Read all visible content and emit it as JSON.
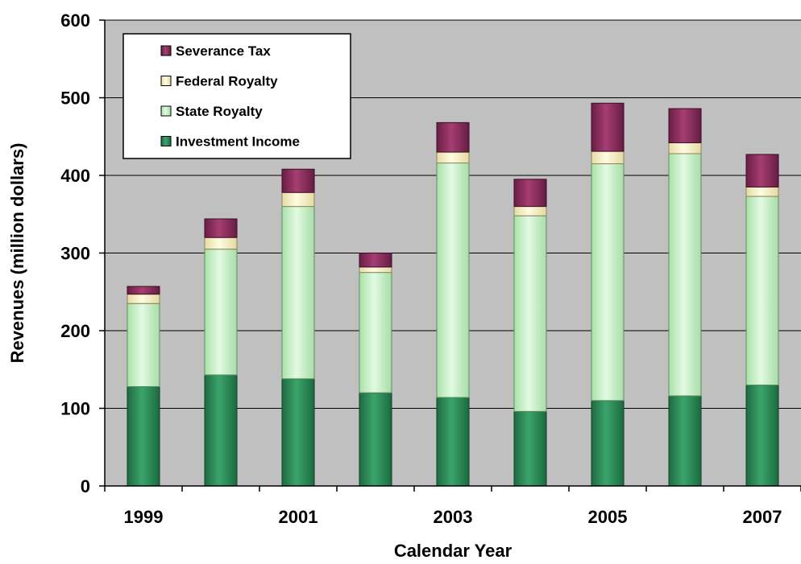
{
  "chart_data": {
    "type": "bar",
    "stacked": true,
    "categories": [
      "1999",
      "2000",
      "2001",
      "2002",
      "2003",
      "2004",
      "2005",
      "2006",
      "2007"
    ],
    "x_tick_labels": [
      "1999",
      "",
      "2001",
      "",
      "2003",
      "",
      "2005",
      "",
      "2007"
    ],
    "xlabel": "Calendar Year",
    "ylabel": "Revenues (million dollars)",
    "ylim": [
      0,
      600
    ],
    "yticks": [
      0,
      100,
      200,
      300,
      400,
      500,
      600
    ],
    "grid": true,
    "legend_position": "top-left",
    "series": [
      {
        "name": "Investment Income",
        "color": "#2e8b57",
        "values": [
          128,
          143,
          138,
          120,
          114,
          96,
          110,
          116,
          130
        ]
      },
      {
        "name": "State Royalty",
        "color": "#c8f5c8",
        "values": [
          107,
          162,
          222,
          155,
          302,
          252,
          305,
          312,
          243
        ]
      },
      {
        "name": "Federal Royalty",
        "color": "#fffacd",
        "values": [
          12,
          15,
          18,
          7,
          14,
          12,
          16,
          14,
          12
        ]
      },
      {
        "name": "Severance Tax",
        "color": "#8b2c5a",
        "values": [
          10,
          24,
          30,
          18,
          38,
          35,
          62,
          44,
          42
        ]
      }
    ],
    "legend_order": [
      "Severance Tax",
      "Federal Royalty",
      "State Royalty",
      "Investment Income"
    ]
  }
}
